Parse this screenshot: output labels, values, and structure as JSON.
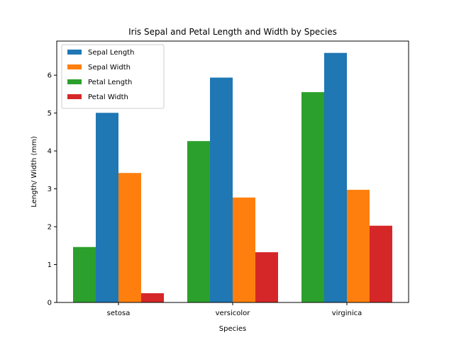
{
  "chart_data": {
    "type": "bar",
    "title": "Iris Sepal and Petal Length and Width by Species",
    "xlabel": "Species",
    "ylabel": "Length/ Width (mm)",
    "categories": [
      "setosa",
      "versicolor",
      "virginica"
    ],
    "ylim": [
      0,
      6.9
    ],
    "yticks": [
      0,
      1,
      2,
      3,
      4,
      5,
      6
    ],
    "grid": false,
    "legend_position": "top-left",
    "series": [
      {
        "name": "Sepal Length",
        "color": "#1f77b4",
        "values": [
          5.006,
          5.936,
          6.588
        ]
      },
      {
        "name": "Sepal Width",
        "color": "#ff7f0e",
        "values": [
          3.418,
          2.77,
          2.974
        ]
      },
      {
        "name": "Petal Length",
        "color": "#2ca02c",
        "values": [
          1.464,
          4.26,
          5.552
        ]
      },
      {
        "name": "Petal Width",
        "color": "#d62728",
        "values": [
          0.244,
          1.326,
          2.026
        ]
      }
    ]
  }
}
